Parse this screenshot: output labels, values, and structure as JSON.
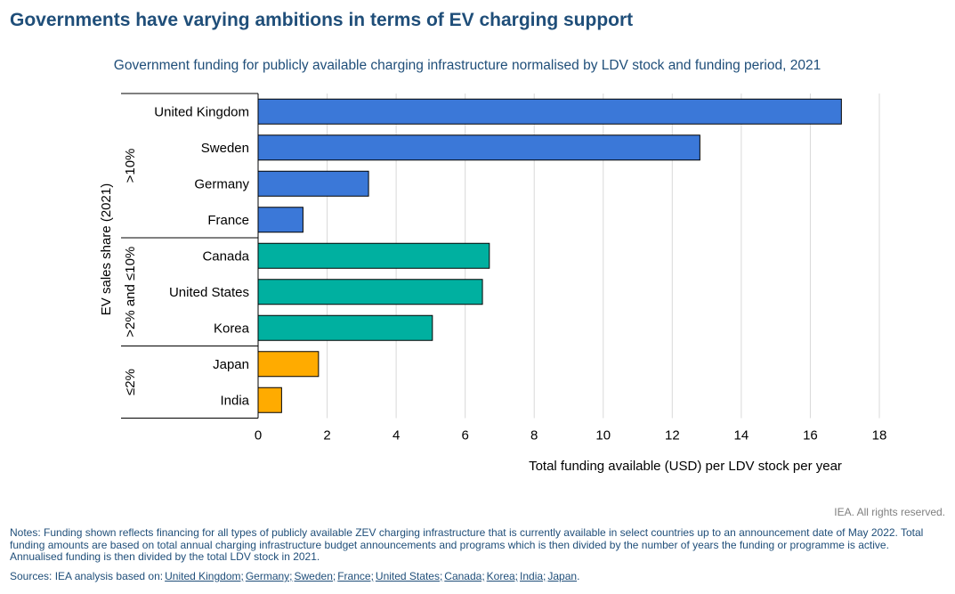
{
  "title": "Governments have varying ambitions in terms of EV charging support",
  "chart_data": {
    "type": "bar",
    "orientation": "horizontal",
    "title": "Government funding for publicly available charging infrastructure normalised by LDV stock and funding period, 2021",
    "xlabel": "Total funding available (USD) per LDV stock per year",
    "ylabel": "EV sales share (2021)",
    "xlim": [
      0,
      18
    ],
    "xticks": [
      0,
      2,
      4,
      6,
      8,
      10,
      12,
      14,
      16,
      18
    ],
    "grid": "vertical",
    "groups": [
      {
        "label": ">10%",
        "color": "#3b78d8",
        "categories": [
          "United Kingdom",
          "Sweden",
          "Germany",
          "France"
        ],
        "values": [
          16.9,
          12.8,
          3.2,
          1.3
        ]
      },
      {
        "label": ">2% and ≤10%",
        "color": "#00b0a0",
        "categories": [
          "Canada",
          "United States",
          "Korea"
        ],
        "values": [
          6.7,
          6.5,
          5.05
        ]
      },
      {
        "label": "≤2%",
        "color": "#ffab00",
        "categories": [
          "Japan",
          "India"
        ],
        "values": [
          1.75,
          0.68
        ]
      }
    ]
  },
  "rights": "IEA. All rights reserved.",
  "notes": "Notes: Funding shown reflects financing for all types of publicly available ZEV charging infrastructure that is currently available in select countries up to an announcement date of May 2022. Total funding amounts are based on total annual charging infrastructure budget announcements and programs which is then divided by the number of years the funding or programme is active. Annualised funding is then divided by the total LDV stock in 2021.",
  "sources": {
    "label": "Sources: IEA analysis based on:",
    "links": [
      "United Kingdom;",
      "Germany;",
      "Sweden;",
      "France;",
      "United States;",
      "Canada;",
      "Korea;",
      "India;",
      "Japan"
    ],
    "end": "."
  }
}
